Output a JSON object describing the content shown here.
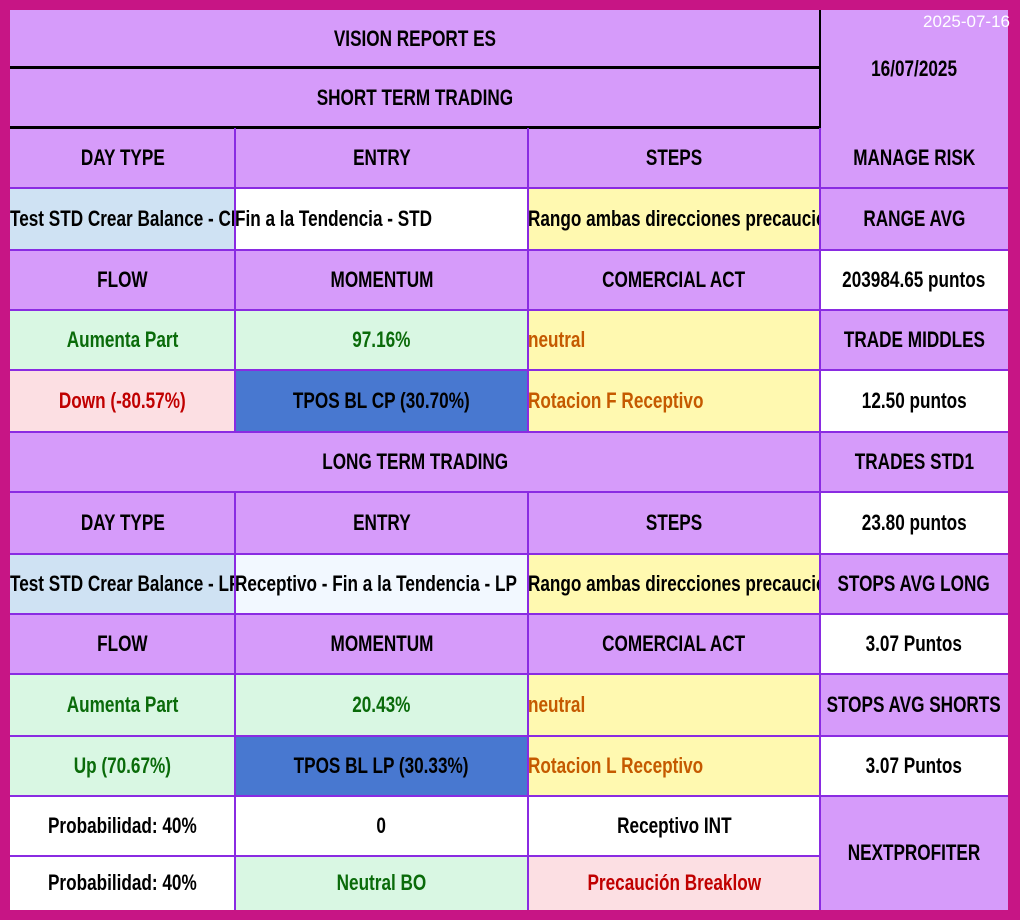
{
  "stamp": "2025-07-16",
  "header": {
    "title": "VISION REPORT ES",
    "date": "16/07/2025",
    "short_title": "SHORT TERM TRADING",
    "long_title": "LONG TERM TRADING"
  },
  "short": {
    "col_day_type": "DAY TYPE",
    "col_entry": "ENTRY",
    "col_steps": "STEPS",
    "day_type": "Test STD Crear Balance - CP",
    "entry": "Fin a la Tendencia - STD",
    "steps": "Rango ambas direcciones precaución",
    "col_flow": "FLOW",
    "col_momentum": "MOMENTUM",
    "col_comercial": "COMERCIAL ACT",
    "flow": "Aumenta Part",
    "momentum": "97.16%",
    "comercial": "neutral",
    "direction": "Down (-80.57%)",
    "tpos": "TPOS BL CP (30.70%)",
    "rotation": "Rotacion F Receptivo"
  },
  "long": {
    "col_day_type": "DAY TYPE",
    "col_entry": "ENTRY",
    "col_steps": "STEPS",
    "day_type": "Test STD Crear Balance - LP",
    "entry": "Receptivo - Fin a la Tendencia - LP",
    "steps": "Rango ambas direcciones precaución",
    "col_flow": "FLOW",
    "col_momentum": "MOMENTUM",
    "col_comercial": "COMERCIAL ACT",
    "flow": "Aumenta Part",
    "momentum": "20.43%",
    "comercial": "neutral",
    "direction": "Up (70.67%)",
    "tpos": "TPOS BL LP (30.33%)",
    "rotation": "Rotacion L Receptivo",
    "prob1": "Probabilidad: 40%",
    "val1": "0",
    "int1": "Receptivo INT",
    "prob2": "Probabilidad: 40%",
    "bo": "Neutral BO",
    "breaklow": "Precaución Breaklow"
  },
  "risk": {
    "manage_label": "MANAGE RISK",
    "range_label": "RANGE AVG",
    "range_value": "203984.65 puntos",
    "middles_label": "TRADE MIDDLES",
    "middles_value": "12.50 puntos",
    "std1_label": "TRADES  STD1",
    "std1_value": "23.80 puntos",
    "stops_long_label": "STOPS AVG LONG",
    "stops_long_value": "3.07 Puntos",
    "stops_short_label": "STOPS AVG SHORTS",
    "stops_short_value": "3.07 Puntos",
    "brand": "NEXTPROFITER"
  },
  "colors": {
    "border": "#c71585",
    "header": "#d69bfa",
    "grid": "#8a2be2",
    "green": "#0a6b0a",
    "red": "#c00000",
    "orange": "#c55a00",
    "blue": "#4878d0"
  }
}
